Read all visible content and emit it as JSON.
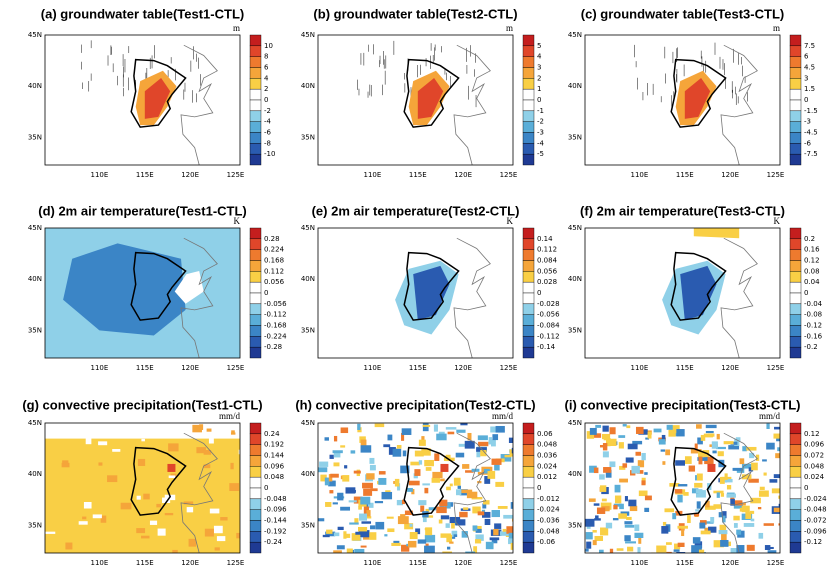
{
  "panels": [
    {
      "title": "(a) groundwater table(Test1-CTL)",
      "unit": "m",
      "colorbar": [
        "10",
        "8",
        "6",
        "4",
        "2",
        "0",
        "-2",
        "-4",
        "-6",
        "-8",
        "-10"
      ]
    },
    {
      "title": "(b) groundwater table(Test2-CTL)",
      "unit": "m",
      "colorbar": [
        "5",
        "4",
        "3",
        "2",
        "1",
        "0",
        "-1",
        "-2",
        "-3",
        "-4",
        "-5"
      ]
    },
    {
      "title": "(c) groundwater table(Test3-CTL)",
      "unit": "m",
      "colorbar": [
        "7.5",
        "6",
        "4.5",
        "3",
        "1.5",
        "0",
        "-1.5",
        "-3",
        "-4.5",
        "-6",
        "-7.5"
      ]
    },
    {
      "title": "(d) 2m air temperature(Test1-CTL)",
      "unit": "K",
      "colorbar": [
        "0.28",
        "0.224",
        "0.168",
        "0.112",
        "0.056",
        "0",
        "-0.056",
        "-0.112",
        "-0.168",
        "-0.224",
        "-0.28"
      ]
    },
    {
      "title": "(e) 2m air temperature(Test2-CTL)",
      "unit": "K",
      "colorbar": [
        "0.14",
        "0.112",
        "0.084",
        "0.056",
        "0.028",
        "0",
        "-0.028",
        "-0.056",
        "-0.084",
        "-0.112",
        "-0.14"
      ]
    },
    {
      "title": "(f) 2m air temperature(Test3-CTL)",
      "unit": "K",
      "colorbar": [
        "0.2",
        "0.16",
        "0.12",
        "0.08",
        "0.04",
        "0",
        "-0.04",
        "-0.08",
        "-0.12",
        "-0.16",
        "-0.2"
      ]
    },
    {
      "title": "(g) convective precipitation(Test1-CTL)",
      "unit": "mm/d",
      "colorbar": [
        "0.24",
        "0.192",
        "0.144",
        "0.096",
        "0.048",
        "0",
        "-0.048",
        "-0.096",
        "-0.144",
        "-0.192",
        "-0.24"
      ]
    },
    {
      "title": "(h) convective precipitation(Test2-CTL)",
      "unit": "mm/d",
      "colorbar": [
        "0.06",
        "0.048",
        "0.036",
        "0.024",
        "0.012",
        "0",
        "-0.012",
        "-0.024",
        "-0.036",
        "-0.048",
        "-0.06"
      ]
    },
    {
      "title": "(i) convective precipitation(Test3-CTL)",
      "unit": "mm/d",
      "colorbar": [
        "0.12",
        "0.096",
        "0.072",
        "0.048",
        "0.024",
        "0",
        "-0.024",
        "-0.048",
        "-0.072",
        "-0.096",
        "-0.12"
      ]
    }
  ],
  "lat_labels": [
    "45N",
    "40N",
    "35N"
  ],
  "lon_labels": [
    "110E",
    "115E",
    "120E",
    "125E"
  ]
}
